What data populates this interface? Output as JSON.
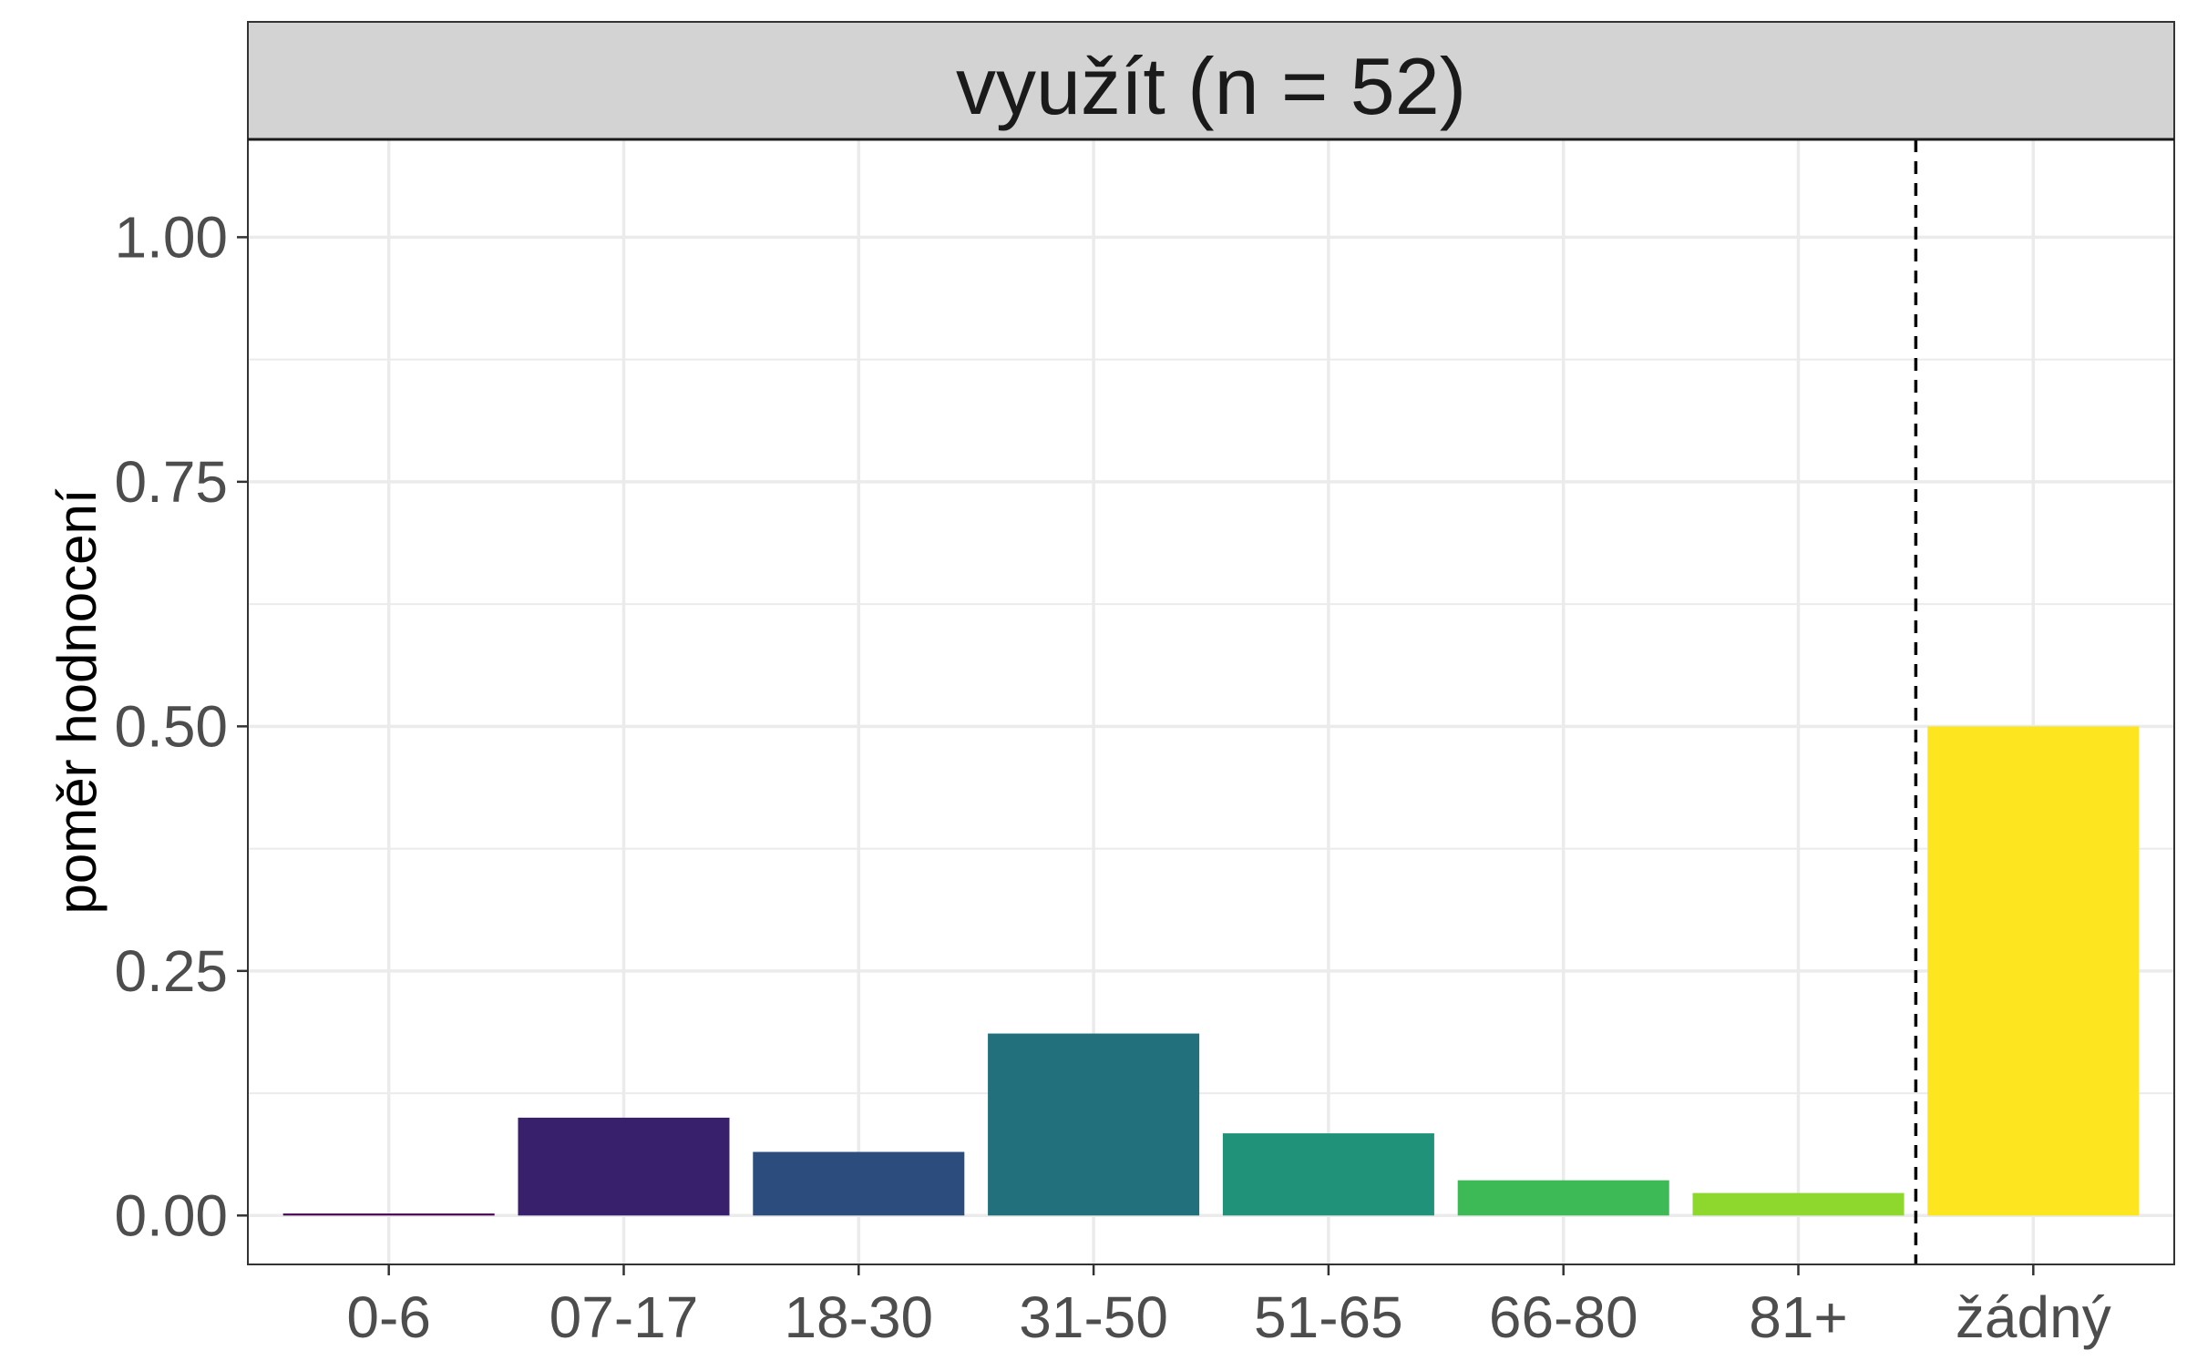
{
  "chart_data": {
    "type": "bar",
    "facet_title": "využít (n = 52)",
    "ylabel": "poměr hodnocení",
    "xlabel": "",
    "categories": [
      "0-6",
      "07-17",
      "18-30",
      "31-50",
      "51-65",
      "66-80",
      "81+",
      "žádný"
    ],
    "values": [
      0.002,
      0.1,
      0.065,
      0.186,
      0.084,
      0.036,
      0.023,
      0.5
    ],
    "colors": [
      "#440154",
      "#39206D",
      "#2B4C7D",
      "#21707C",
      "#21927A",
      "#3DBA55",
      "#8ED72D",
      "#FDE51F"
    ],
    "ylim": [
      -0.05,
      1.1
    ],
    "yticks": [
      0.0,
      0.25,
      0.5,
      0.75,
      1.0
    ],
    "ytick_labels": [
      "0.00",
      "0.25",
      "0.50",
      "0.75",
      "1.00"
    ],
    "reference_line": {
      "between": [
        "81+",
        "žádný"
      ],
      "style": "dashed",
      "color": "#000000"
    },
    "grid": true,
    "theme": "bw",
    "strip_color": "#d3d3d3"
  }
}
